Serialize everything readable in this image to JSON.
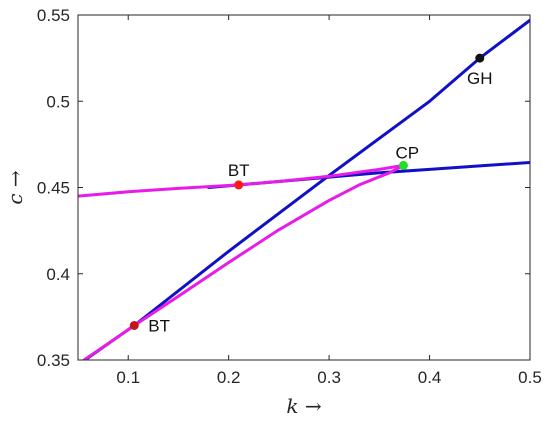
{
  "chart_data": {
    "type": "line",
    "xlabel": "k →",
    "ylabel": "c →",
    "xlim": [
      0.05,
      0.5
    ],
    "ylim": [
      0.35,
      0.55
    ],
    "xticks": [
      0.1,
      0.2,
      0.3,
      0.4,
      0.5
    ],
    "yticks": [
      0.35,
      0.4,
      0.45,
      0.5,
      0.55
    ],
    "xtick_labels": [
      "0.1",
      "0.2",
      "0.3",
      "0.4",
      "0.5"
    ],
    "ytick_labels": [
      "0.35",
      "0.4",
      "0.45",
      "0.5",
      "0.55"
    ],
    "grid": false,
    "series": [
      {
        "color": "#1010c8",
        "points": [
          [
            0.057,
            0.35
          ],
          [
            0.106,
            0.37
          ],
          [
            0.2,
            0.413
          ],
          [
            0.3,
            0.457
          ],
          [
            0.4,
            0.5
          ],
          [
            0.45,
            0.525
          ],
          [
            0.5,
            0.547
          ]
        ]
      },
      {
        "color": "#1010c8",
        "points": [
          [
            0.18,
            0.45
          ],
          [
            0.25,
            0.4535
          ],
          [
            0.3,
            0.456
          ],
          [
            0.35,
            0.4585
          ],
          [
            0.4,
            0.4605
          ],
          [
            0.45,
            0.4625
          ],
          [
            0.5,
            0.4645
          ]
        ]
      },
      {
        "color": "#e81ce8",
        "points": [
          [
            0.05,
            0.445
          ],
          [
            0.1,
            0.4475
          ],
          [
            0.15,
            0.4495
          ],
          [
            0.21,
            0.4515
          ],
          [
            0.25,
            0.4535
          ],
          [
            0.3,
            0.4565
          ],
          [
            0.35,
            0.4605
          ],
          [
            0.374,
            0.4628
          ]
        ]
      },
      {
        "color": "#e81ce8",
        "points": [
          [
            0.056,
            0.35
          ],
          [
            0.08,
            0.3595
          ],
          [
            0.106,
            0.37
          ],
          [
            0.15,
            0.387
          ],
          [
            0.2,
            0.4065
          ],
          [
            0.25,
            0.4255
          ],
          [
            0.3,
            0.4425
          ],
          [
            0.33,
            0.4515
          ],
          [
            0.36,
            0.4585
          ],
          [
            0.374,
            0.4628
          ]
        ]
      }
    ],
    "points": [
      {
        "label": "BT",
        "x": 0.106,
        "y": 0.37,
        "color": "#c01818",
        "anchor": "right"
      },
      {
        "label": "BT",
        "x": 0.21,
        "y": 0.4515,
        "color": "#ff1818",
        "anchor": "above"
      },
      {
        "label": "CP",
        "x": 0.374,
        "y": 0.4628,
        "color": "#20e020",
        "anchor": "right-above"
      },
      {
        "label": "GH",
        "x": 0.45,
        "y": 0.525,
        "color": "#111111",
        "anchor": "below"
      }
    ]
  }
}
